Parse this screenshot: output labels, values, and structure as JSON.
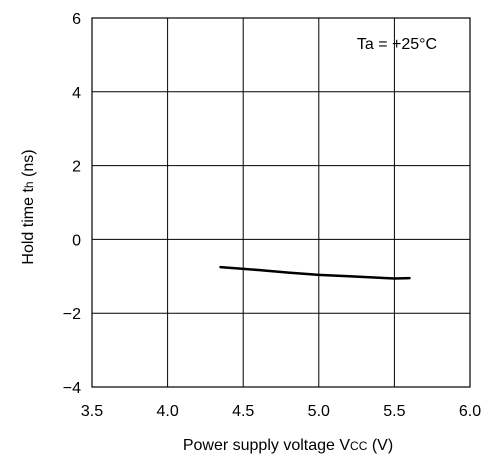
{
  "chart_data": {
    "type": "line",
    "annotation": "Ta = +25°C",
    "xlabel": {
      "main": "Power supply voltage V",
      "sub": "CC",
      "unit": " (V)"
    },
    "ylabel": {
      "main": "Hold time  t",
      "sub": "h",
      "unit": " (ns)"
    },
    "xlim": [
      3.5,
      6.0
    ],
    "ylim": [
      -4,
      6
    ],
    "x_ticks": [
      3.5,
      4.0,
      4.5,
      5.0,
      5.5,
      6.0
    ],
    "y_ticks": [
      -4,
      -2,
      0,
      2,
      4,
      6
    ],
    "x_tick_labels": [
      "3.5",
      "4.0",
      "4.5",
      "5.0",
      "5.5",
      "6.0"
    ],
    "y_tick_labels": [
      "−4",
      "−2",
      "0",
      "2",
      "4",
      "6"
    ],
    "grid": true,
    "series": [
      {
        "x": [
          4.35,
          4.6,
          4.8,
          5.0,
          5.2,
          5.4,
          5.5,
          5.6
        ],
        "y": [
          -0.75,
          -0.83,
          -0.9,
          -0.96,
          -1.0,
          -1.04,
          -1.06,
          -1.05
        ]
      }
    ]
  }
}
